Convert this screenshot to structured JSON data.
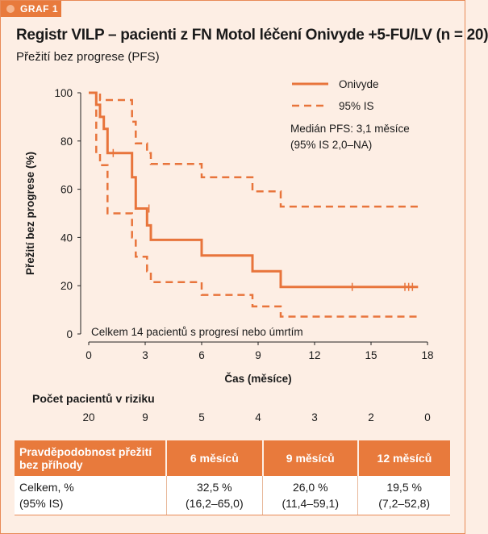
{
  "figure_tag": "GRAF 1",
  "title": "Registr VILP – pacienti z FN Motol léčení Onivyde +5-FU/LV (n = 20)",
  "subtitle": "Přežití bez progrese (PFS)",
  "colors": {
    "accent": "#e87a3c",
    "line": "#e8743b",
    "background": "#fdeee4"
  },
  "chart_data": {
    "type": "line",
    "ylabel": "Přežití bez progrese (%)",
    "xlabel": "Čas (měsíce)",
    "xlim": [
      0,
      18
    ],
    "ylim": [
      0,
      100
    ],
    "xticks": [
      0,
      3,
      6,
      9,
      12,
      15,
      18
    ],
    "yticks": [
      0,
      20,
      40,
      60,
      80,
      100
    ],
    "legend": {
      "position": "top-right",
      "entries": [
        "Onivyde",
        "95% IS"
      ]
    },
    "annotation": "Medián PFS: 3,1 měsíce",
    "annotation2": "(95% IS 2,0–NA)",
    "footnote": "Celkem 14 pacientů s progresí nebo úmrtím",
    "series": [
      {
        "name": "Onivyde",
        "style": "solid",
        "x": [
          0,
          0.4,
          0.4,
          0.6,
          0.6,
          0.8,
          0.8,
          1.0,
          1.0,
          2.3,
          2.3,
          2.5,
          2.5,
          3.1,
          3.1,
          3.3,
          3.3,
          6.0,
          6.0,
          8.7,
          8.7,
          10.2,
          10.2,
          17.5
        ],
        "y": [
          100,
          100,
          95,
          95,
          90,
          90,
          85,
          85,
          75,
          75,
          65,
          65,
          52,
          52,
          45,
          45,
          39,
          39,
          32.5,
          32.5,
          26,
          26,
          19.5,
          19.5
        ]
      },
      {
        "name": "95% IS",
        "style": "dashed",
        "x": [
          0,
          0.4,
          0.4,
          0.6,
          0.6,
          1.0,
          1.0,
          2.3,
          2.3,
          2.5,
          2.5,
          3.1,
          3.1,
          3.3,
          3.3,
          6.0,
          6.0,
          8.7,
          8.7,
          10.2,
          10.2,
          17.5
        ],
        "y": [
          100,
          100,
          75,
          75,
          70,
          70,
          50,
          50,
          40,
          40,
          32,
          32,
          26,
          26,
          21.5,
          21.5,
          16.2,
          16.2,
          11.4,
          11.4,
          7.2,
          7.2
        ]
      },
      {
        "name": "95% IS",
        "style": "dashed",
        "x": [
          0,
          0.4,
          0.4,
          0.6,
          0.6,
          1.0,
          1.0,
          2.3,
          2.3,
          2.5,
          2.5,
          3.1,
          3.1,
          3.3,
          3.3,
          6.0,
          6.0,
          8.7,
          8.7,
          10.2,
          10.2,
          17.5
        ],
        "y": [
          100,
          100,
          100,
          100,
          97,
          97,
          97,
          97,
          88,
          88,
          79,
          79,
          75,
          75,
          70.5,
          70.5,
          65,
          65,
          59.1,
          59.1,
          52.8,
          52.8
        ]
      }
    ],
    "censor_marks": {
      "x": [
        1.3,
        3.2,
        14.0,
        16.8,
        17.0,
        17.2
      ],
      "y": [
        75,
        52,
        19.5,
        19.5,
        19.5,
        19.5
      ]
    }
  },
  "risk": {
    "label": "Počet pacientů v riziku",
    "times": [
      0,
      3,
      6,
      9,
      12,
      15,
      18
    ],
    "values": [
      "20",
      "9",
      "5",
      "4",
      "3",
      "2",
      "0"
    ]
  },
  "table": {
    "headers": [
      "Pravděpodobnost přežití bez příhody",
      "6 měsíců",
      "9 měsíců",
      "12 měsíců"
    ],
    "row": {
      "label_line1": "Celkem, %",
      "label_line2": "(95% IS)",
      "cells": [
        {
          "value": "32,5 %",
          "ci": "(16,2–65,0)"
        },
        {
          "value": "26,0 %",
          "ci": "(11,4–59,1)"
        },
        {
          "value": "19,5 %",
          "ci": "(7,2–52,8)"
        }
      ]
    }
  }
}
